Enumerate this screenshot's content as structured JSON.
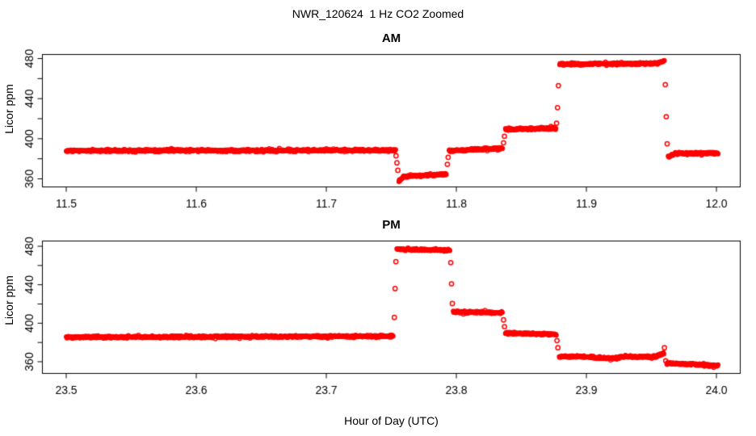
{
  "page": {
    "title": "NWR_120624  1 Hz CO2 Zoomed",
    "xlabel": "Hour of Day (UTC)",
    "background": "#FFFFFF"
  },
  "plot_style": {
    "point_color": "#FF0000",
    "axis_color": "#000000",
    "text_color": "#000000",
    "point_radius": 2.3,
    "single_point_radius": 2.6,
    "point_stroke_width": 1.4,
    "noise_ppm": 0.55
  },
  "chart_data": [
    {
      "id": "am",
      "type": "scatter",
      "title": "AM",
      "ylabel": "Licor ppm",
      "sample_rate_hz": 1,
      "xlim": [
        11.48,
        12.02
      ],
      "ylim": [
        355,
        484
      ],
      "x_ticks": [
        {
          "v": 11.5,
          "label": "11.5"
        },
        {
          "v": 11.6,
          "label": "11.6"
        },
        {
          "v": 11.7,
          "label": "11.7"
        },
        {
          "v": 11.8,
          "label": "11.8"
        },
        {
          "v": 11.9,
          "label": "11.9"
        },
        {
          "v": 12.0,
          "label": "12.0"
        }
      ],
      "y_ticks": [
        {
          "v": 360,
          "label": "360"
        },
        {
          "v": 380,
          "label": ""
        },
        {
          "v": 400,
          "label": "400"
        },
        {
          "v": 420,
          "label": ""
        },
        {
          "v": 440,
          "label": "440"
        },
        {
          "v": 460,
          "label": ""
        },
        {
          "v": 480,
          "label": "480"
        }
      ],
      "segments": [
        {
          "t0": 11.5,
          "t1": 11.7534,
          "v0": 388.0,
          "v1": 388.5
        },
        {
          "t0": 11.7558,
          "t1": 11.7595,
          "v0": 357.5,
          "v1": 362.0
        },
        {
          "t0": 11.7595,
          "t1": 11.7925,
          "v0": 362.5,
          "v1": 364.5
        },
        {
          "t0": 11.7944,
          "t1": 11.8356,
          "v0": 388.0,
          "v1": 390.5
        },
        {
          "t0": 11.8377,
          "t1": 11.8766,
          "v0": 409.5,
          "v1": 410.5
        },
        {
          "t0": 11.8794,
          "t1": 11.955,
          "v0": 474.2,
          "v1": 475.2
        },
        {
          "t0": 11.955,
          "t1": 11.9601,
          "v0": 475.2,
          "v1": 477.6
        },
        {
          "t0": 11.9629,
          "t1": 11.9685,
          "v0": 382.0,
          "v1": 384.8
        },
        {
          "t0": 11.9685,
          "t1": 12.0015,
          "v0": 385.2,
          "v1": 385.6
        }
      ],
      "transition_points": [
        {
          "t": 11.7536,
          "v": 383.0
        },
        {
          "t": 11.7543,
          "v": 376.0
        },
        {
          "t": 11.755,
          "v": 368.5
        },
        {
          "t": 11.7931,
          "v": 374.5
        },
        {
          "t": 11.7937,
          "v": 381.5
        },
        {
          "t": 11.8363,
          "v": 396.0
        },
        {
          "t": 11.837,
          "v": 402.5
        },
        {
          "t": 11.8771,
          "v": 415.5
        },
        {
          "t": 11.8778,
          "v": 431.0
        },
        {
          "t": 11.8785,
          "v": 453.0
        },
        {
          "t": 11.9607,
          "v": 454.0
        },
        {
          "t": 11.9614,
          "v": 422.0
        },
        {
          "t": 11.9621,
          "v": 395.0
        }
      ]
    },
    {
      "id": "pm",
      "type": "scatter",
      "title": "PM",
      "ylabel": "Licor ppm",
      "sample_rate_hz": 1,
      "xlim": [
        23.48,
        24.02
      ],
      "ylim": [
        352,
        484
      ],
      "x_ticks": [
        {
          "v": 23.5,
          "label": "23.5"
        },
        {
          "v": 23.6,
          "label": "23.6"
        },
        {
          "v": 23.7,
          "label": "23.7"
        },
        {
          "v": 23.8,
          "label": "23.8"
        },
        {
          "v": 23.9,
          "label": "23.9"
        },
        {
          "v": 24.0,
          "label": "24.0"
        }
      ],
      "y_ticks": [
        {
          "v": 360,
          "label": "360"
        },
        {
          "v": 380,
          "label": ""
        },
        {
          "v": 400,
          "label": "400"
        },
        {
          "v": 420,
          "label": ""
        },
        {
          "v": 440,
          "label": "440"
        },
        {
          "v": 460,
          "label": ""
        },
        {
          "v": 480,
          "label": "480"
        }
      ],
      "segments": [
        {
          "t0": 23.5,
          "t1": 23.7516,
          "v0": 385.5,
          "v1": 386.5
        },
        {
          "t0": 23.7542,
          "t1": 23.7951,
          "v0": 476.8,
          "v1": 475.8
        },
        {
          "t0": 23.7976,
          "t1": 23.8356,
          "v0": 411.8,
          "v1": 411.0
        },
        {
          "t0": 23.8377,
          "t1": 23.8769,
          "v0": 389.5,
          "v1": 388.5
        },
        {
          "t0": 23.8791,
          "t1": 23.9055,
          "v0": 365.5,
          "v1": 365.0
        },
        {
          "t0": 23.9055,
          "t1": 23.9255,
          "v0": 363.8,
          "v1": 363.8
        },
        {
          "t0": 23.9255,
          "t1": 23.954,
          "v0": 365.2,
          "v1": 365.2
        },
        {
          "t0": 23.954,
          "t1": 23.9596,
          "v0": 365.5,
          "v1": 368.5
        },
        {
          "t0": 23.9618,
          "t1": 24.0015,
          "v0": 358.5,
          "v1": 356.0
        }
      ],
      "transition_points": [
        {
          "t": 23.7523,
          "v": 406.0
        },
        {
          "t": 23.7529,
          "v": 436.0
        },
        {
          "t": 23.7535,
          "v": 464.0
        },
        {
          "t": 23.7957,
          "v": 463.0
        },
        {
          "t": 23.7963,
          "v": 441.0
        },
        {
          "t": 23.7969,
          "v": 420.5
        },
        {
          "t": 23.8363,
          "v": 403.5
        },
        {
          "t": 23.837,
          "v": 396.5
        },
        {
          "t": 23.8774,
          "v": 382.0
        },
        {
          "t": 23.8781,
          "v": 374.5
        },
        {
          "t": 23.96,
          "v": 374.5
        },
        {
          "t": 23.961,
          "v": 361.0
        }
      ]
    }
  ]
}
